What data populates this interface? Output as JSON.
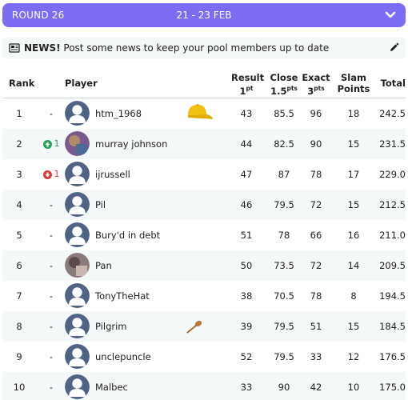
{
  "round_bar": {
    "label": "ROUND 26",
    "dates": "21 - 23 FEB"
  },
  "news": {
    "strong": "NEWS!",
    "text": " Post some news to keep your pool members up to date"
  },
  "headers": {
    "rank": "Rank",
    "player": "Player",
    "result": "Result",
    "result_pts": "1",
    "result_sup": "pt",
    "close": "Close",
    "close_pts": "1.5",
    "close_sup": "pts",
    "exact": "Exact",
    "exact_pts": "3",
    "exact_sup": "pts",
    "slam1": "Slam",
    "slam2": "Points",
    "total": "Total"
  },
  "rows": [
    {
      "rank": "1",
      "move": "-",
      "name": "htm_1968",
      "result": "43",
      "close": "85.5",
      "exact": "96",
      "slam": "18",
      "total": "242.5",
      "badge": "cap-icon"
    },
    {
      "rank": "2",
      "move": "1",
      "dir": "up",
      "name": "murray johnson",
      "result": "44",
      "close": "82.5",
      "exact": "90",
      "slam": "15",
      "total": "231.5",
      "photo": true
    },
    {
      "rank": "3",
      "move": "1",
      "dir": "down",
      "name": "ijrussell",
      "result": "47",
      "close": "87",
      "exact": "78",
      "slam": "17",
      "total": "229.0"
    },
    {
      "rank": "4",
      "move": "-",
      "name": "Pil",
      "result": "46",
      "close": "79.5",
      "exact": "72",
      "slam": "15",
      "total": "212.5"
    },
    {
      "rank": "5",
      "move": "-",
      "name": "Bury'd in debt",
      "result": "51",
      "close": "78",
      "exact": "66",
      "slam": "16",
      "total": "211.0"
    },
    {
      "rank": "6",
      "move": "-",
      "name": "Pan",
      "result": "50",
      "close": "73.5",
      "exact": "72",
      "slam": "14",
      "total": "209.5",
      "photo": true
    },
    {
      "rank": "7",
      "move": "-",
      "name": "TonyTheHat",
      "result": "38",
      "close": "70.5",
      "exact": "78",
      "slam": "8",
      "total": "194.5"
    },
    {
      "rank": "8",
      "move": "-",
      "name": "Pilgrim",
      "result": "39",
      "close": "79.5",
      "exact": "51",
      "slam": "15",
      "total": "184.5",
      "badge": "spoon-icon"
    },
    {
      "rank": "9",
      "move": "-",
      "name": "unclepuncle",
      "result": "52",
      "close": "79.5",
      "exact": "33",
      "slam": "12",
      "total": "176.5"
    },
    {
      "rank": "10",
      "move": "-",
      "name": "Malbec",
      "result": "33",
      "close": "90",
      "exact": "42",
      "slam": "10",
      "total": "175.0"
    }
  ],
  "colors": {
    "accent": "#7b6cf3",
    "row_alt": "#f4f8f8",
    "up": "#28a35b",
    "down": "#d33c3c",
    "avatar": "#4f6484"
  }
}
